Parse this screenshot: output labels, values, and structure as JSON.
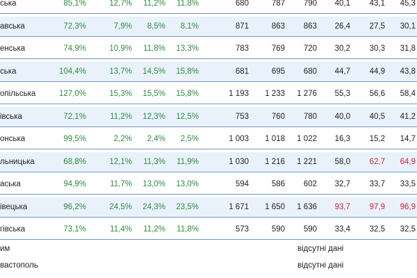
{
  "rows": [
    {
      "region": "ська",
      "c1": "85,1%",
      "c2": "12,7%",
      "c3": "11,2%",
      "c4": "11,8%",
      "c5": "680",
      "c6": "787",
      "c7": "790",
      "c8": "40,1",
      "c9": "43,1",
      "c10": "45,3",
      "red": []
    },
    {
      "region": "авська",
      "c1": "72,3%",
      "c2": "7,9%",
      "c3": "8,5%",
      "c4": "8,1%",
      "c5": "871",
      "c6": "863",
      "c7": "863",
      "c8": "26,4",
      "c9": "27,5",
      "c10": "30,1",
      "red": []
    },
    {
      "region": "енська",
      "c1": "74,9%",
      "c2": "10,9%",
      "c3": "11,8%",
      "c4": "13,3%",
      "c5": "783",
      "c6": "769",
      "c7": "720",
      "c8": "30,2",
      "c9": "30,3",
      "c10": "31,8",
      "red": []
    },
    {
      "region": "ська",
      "c1": "104,4%",
      "c2": "13,7%",
      "c3": "14,5%",
      "c4": "15,8%",
      "c5": "681",
      "c6": "695",
      "c7": "680",
      "c8": "44,7",
      "c9": "44,9",
      "c10": "43,8",
      "red": []
    },
    {
      "region": "опільська",
      "c1": "127,0%",
      "c2": "15,3%",
      "c3": "15,5%",
      "c4": "15,8%",
      "c5": "1 193",
      "c6": "1 233",
      "c7": "1 276",
      "c8": "55,3",
      "c9": "56,6",
      "c10": "58,4",
      "red": []
    },
    {
      "region": "івська",
      "c1": "72,1%",
      "c2": "11,2%",
      "c3": "12,3%",
      "c4": "12,5%",
      "c5": "753",
      "c6": "760",
      "c7": "780",
      "c8": "40,0",
      "c9": "40,5",
      "c10": "41,2",
      "red": []
    },
    {
      "region": "онська",
      "c1": "99,5%",
      "c2": "2,2%",
      "c3": "2,4%",
      "c4": "2,5%",
      "c5": "1 003",
      "c6": "1 018",
      "c7": "1 022",
      "c8": "16,3",
      "c9": "15,2",
      "c10": "14,7",
      "red": []
    },
    {
      "region": "льницька",
      "c1": "68,8%",
      "c2": "12,1%",
      "c3": "11,3%",
      "c4": "11,9%",
      "c5": "1 030",
      "c6": "1 216",
      "c7": "1 221",
      "c8": "58,0",
      "c9": "62,7",
      "c10": "64,9",
      "red": [
        "c9",
        "c10"
      ]
    },
    {
      "region": "аська",
      "c1": "94,9%",
      "c2": "11,7%",
      "c3": "13,0%",
      "c4": "13,0%",
      "c5": "594",
      "c6": "586",
      "c7": "602",
      "c8": "32,7",
      "c9": "33,7",
      "c10": "33,5",
      "red": []
    },
    {
      "region": "івецька",
      "c1": "96,2%",
      "c2": "24,5%",
      "c3": "24,3%",
      "c4": "23,5%",
      "c5": "1 671",
      "c6": "1 650",
      "c7": "1 636",
      "c8": "93,7",
      "c9": "97,9",
      "c10": "96,9",
      "red": [
        "c8",
        "c9",
        "c10"
      ]
    },
    {
      "region": "гівська",
      "c1": "73,1%",
      "c2": "11,4%",
      "c3": "11,2%",
      "c4": "11,8%",
      "c5": "573",
      "c6": "590",
      "c7": "590",
      "c8": "33,4",
      "c9": "32,5",
      "c10": "32,5",
      "red": []
    }
  ],
  "notes": [
    {
      "label": "им",
      "value": "відсутні дані"
    },
    {
      "label": "вастополь",
      "value": "відсутні дані"
    }
  ],
  "colors": {
    "row_shade": "#e9f2fb",
    "rule": "#6f96c8",
    "percent": "#2f8a3f",
    "alert": "#c8243c"
  }
}
